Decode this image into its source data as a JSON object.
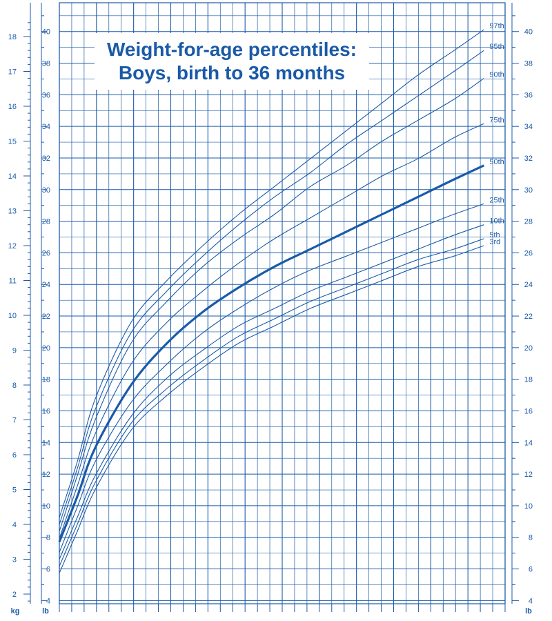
{
  "chart_data": {
    "type": "line",
    "title": "Weight-for-age percentiles:",
    "subtitle": "Boys, birth to 36 months",
    "x_unit": "months",
    "xlim": [
      0,
      36
    ],
    "y_unit_left": "kg",
    "y_unit_right": "lb",
    "ylim_kg": [
      1.6,
      18.4
    ],
    "kg_ticks": [
      2,
      3,
      4,
      5,
      6,
      7,
      8,
      9,
      10,
      11,
      12,
      13,
      14,
      15,
      16,
      17,
      18
    ],
    "lb_ticks": [
      4,
      6,
      8,
      10,
      12,
      14,
      16,
      18,
      20,
      22,
      24,
      26,
      28,
      30,
      32,
      34,
      36,
      38,
      40
    ],
    "lb_tick_labels": [
      "4",
      "6",
      "8",
      "10",
      "12",
      "14",
      "16",
      "18",
      "20",
      "22",
      "24",
      "26",
      "28",
      "30",
      "32",
      "34",
      "36",
      "38",
      "40"
    ],
    "kg_tick_labels": [
      "2",
      "3",
      "4",
      "5",
      "6",
      "7",
      "8",
      "9",
      "10",
      "11",
      "12",
      "13",
      "14",
      "15",
      "16",
      "17",
      "18"
    ],
    "x": [
      0,
      1.5,
      3,
      6,
      9,
      12,
      15,
      18,
      21,
      24,
      27,
      30,
      33,
      35.5
    ],
    "series": [
      {
        "name": "97th",
        "values": [
          4.2,
          5.8,
          7.6,
          9.8,
          11.0,
          12.0,
          12.9,
          13.7,
          14.5,
          15.3,
          16.1,
          16.9,
          17.6,
          18.2
        ]
      },
      {
        "name": "95th",
        "values": [
          4.0,
          5.6,
          7.3,
          9.5,
          10.7,
          11.7,
          12.6,
          13.4,
          14.1,
          14.9,
          15.6,
          16.3,
          17.0,
          17.6
        ]
      },
      {
        "name": "90th",
        "values": [
          3.8,
          5.4,
          7.0,
          9.2,
          10.4,
          11.4,
          12.2,
          12.9,
          13.7,
          14.3,
          15.0,
          15.6,
          16.2,
          16.8
        ]
      },
      {
        "name": "75th",
        "values": [
          3.6,
          5.1,
          6.6,
          8.6,
          9.8,
          10.7,
          11.5,
          12.2,
          12.8,
          13.4,
          14.0,
          14.5,
          15.1,
          15.5
        ]
      },
      {
        "name": "50th",
        "values": [
          3.5,
          4.8,
          6.2,
          8.0,
          9.2,
          10.1,
          10.8,
          11.4,
          11.9,
          12.4,
          12.9,
          13.4,
          13.9,
          14.3
        ]
      },
      {
        "name": "25th",
        "values": [
          3.2,
          4.5,
          5.8,
          7.5,
          8.6,
          9.5,
          10.2,
          10.8,
          11.3,
          11.7,
          12.1,
          12.5,
          12.9,
          13.2
        ]
      },
      {
        "name": "10th",
        "values": [
          3.0,
          4.2,
          5.4,
          7.1,
          8.2,
          9.0,
          9.7,
          10.2,
          10.7,
          11.1,
          11.5,
          11.9,
          12.3,
          12.6
        ]
      },
      {
        "name": "5th",
        "values": [
          2.8,
          4.0,
          5.2,
          6.9,
          7.9,
          8.7,
          9.4,
          9.9,
          10.4,
          10.8,
          11.2,
          11.6,
          11.9,
          12.2
        ]
      },
      {
        "name": "3rd",
        "values": [
          2.6,
          3.8,
          5.0,
          6.7,
          7.7,
          8.5,
          9.2,
          9.7,
          10.2,
          10.6,
          11.0,
          11.4,
          11.7,
          12.0
        ]
      }
    ],
    "highlight_series": "50th",
    "grid": true,
    "colors": {
      "line": "#1a5aa8",
      "grid": "#1a5aa8",
      "background": "#ffffff"
    }
  }
}
